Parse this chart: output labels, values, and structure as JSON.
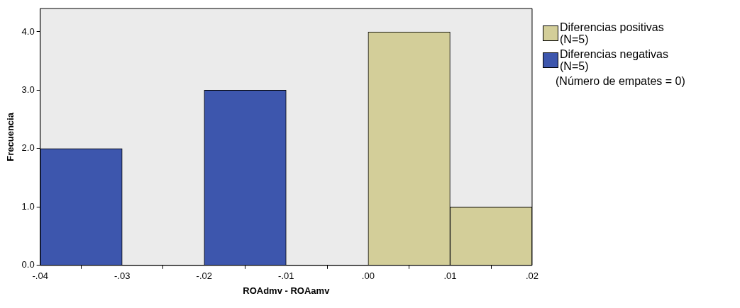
{
  "chart_data": {
    "type": "histogram",
    "xlabel": "ROAdmv - ROAamv",
    "ylabel": "Frecuencia",
    "bins": [
      -0.04,
      -0.03,
      -0.02,
      -0.01,
      0,
      0.01,
      0.02
    ],
    "series": [
      {
        "name": "Diferencias positivas\n(N=5)",
        "color": "#d3ce99",
        "values": [
          null,
          null,
          null,
          null,
          4,
          1
        ]
      },
      {
        "name": "Diferencias negativas\n(N=5)",
        "color": "#3d56ad",
        "values": [
          2,
          0,
          3,
          0,
          null,
          null
        ]
      }
    ],
    "xlim": [
      -0.04,
      0.02
    ],
    "xticks": [
      {
        "value": -0.04,
        "label": "-.04"
      },
      {
        "value": -0.03,
        "label": "-.03"
      },
      {
        "value": -0.02,
        "label": "-.02"
      },
      {
        "value": -0.01,
        "label": "-.01"
      },
      {
        "value": 0,
        "label": ".00"
      },
      {
        "value": 0.01,
        "label": ".01"
      },
      {
        "value": 0.02,
        "label": ".02"
      }
    ],
    "ylim": [
      0,
      4.4
    ],
    "yticks": [
      {
        "value": 0,
        "label": "0.0"
      },
      {
        "value": 1,
        "label": "1.0"
      },
      {
        "value": 2,
        "label": "2.0"
      },
      {
        "value": 3,
        "label": "3.0"
      },
      {
        "value": 4,
        "label": "4.0"
      }
    ],
    "grid": false,
    "legend": "right",
    "annotations": [
      "(Número de empates = 0)"
    ]
  }
}
